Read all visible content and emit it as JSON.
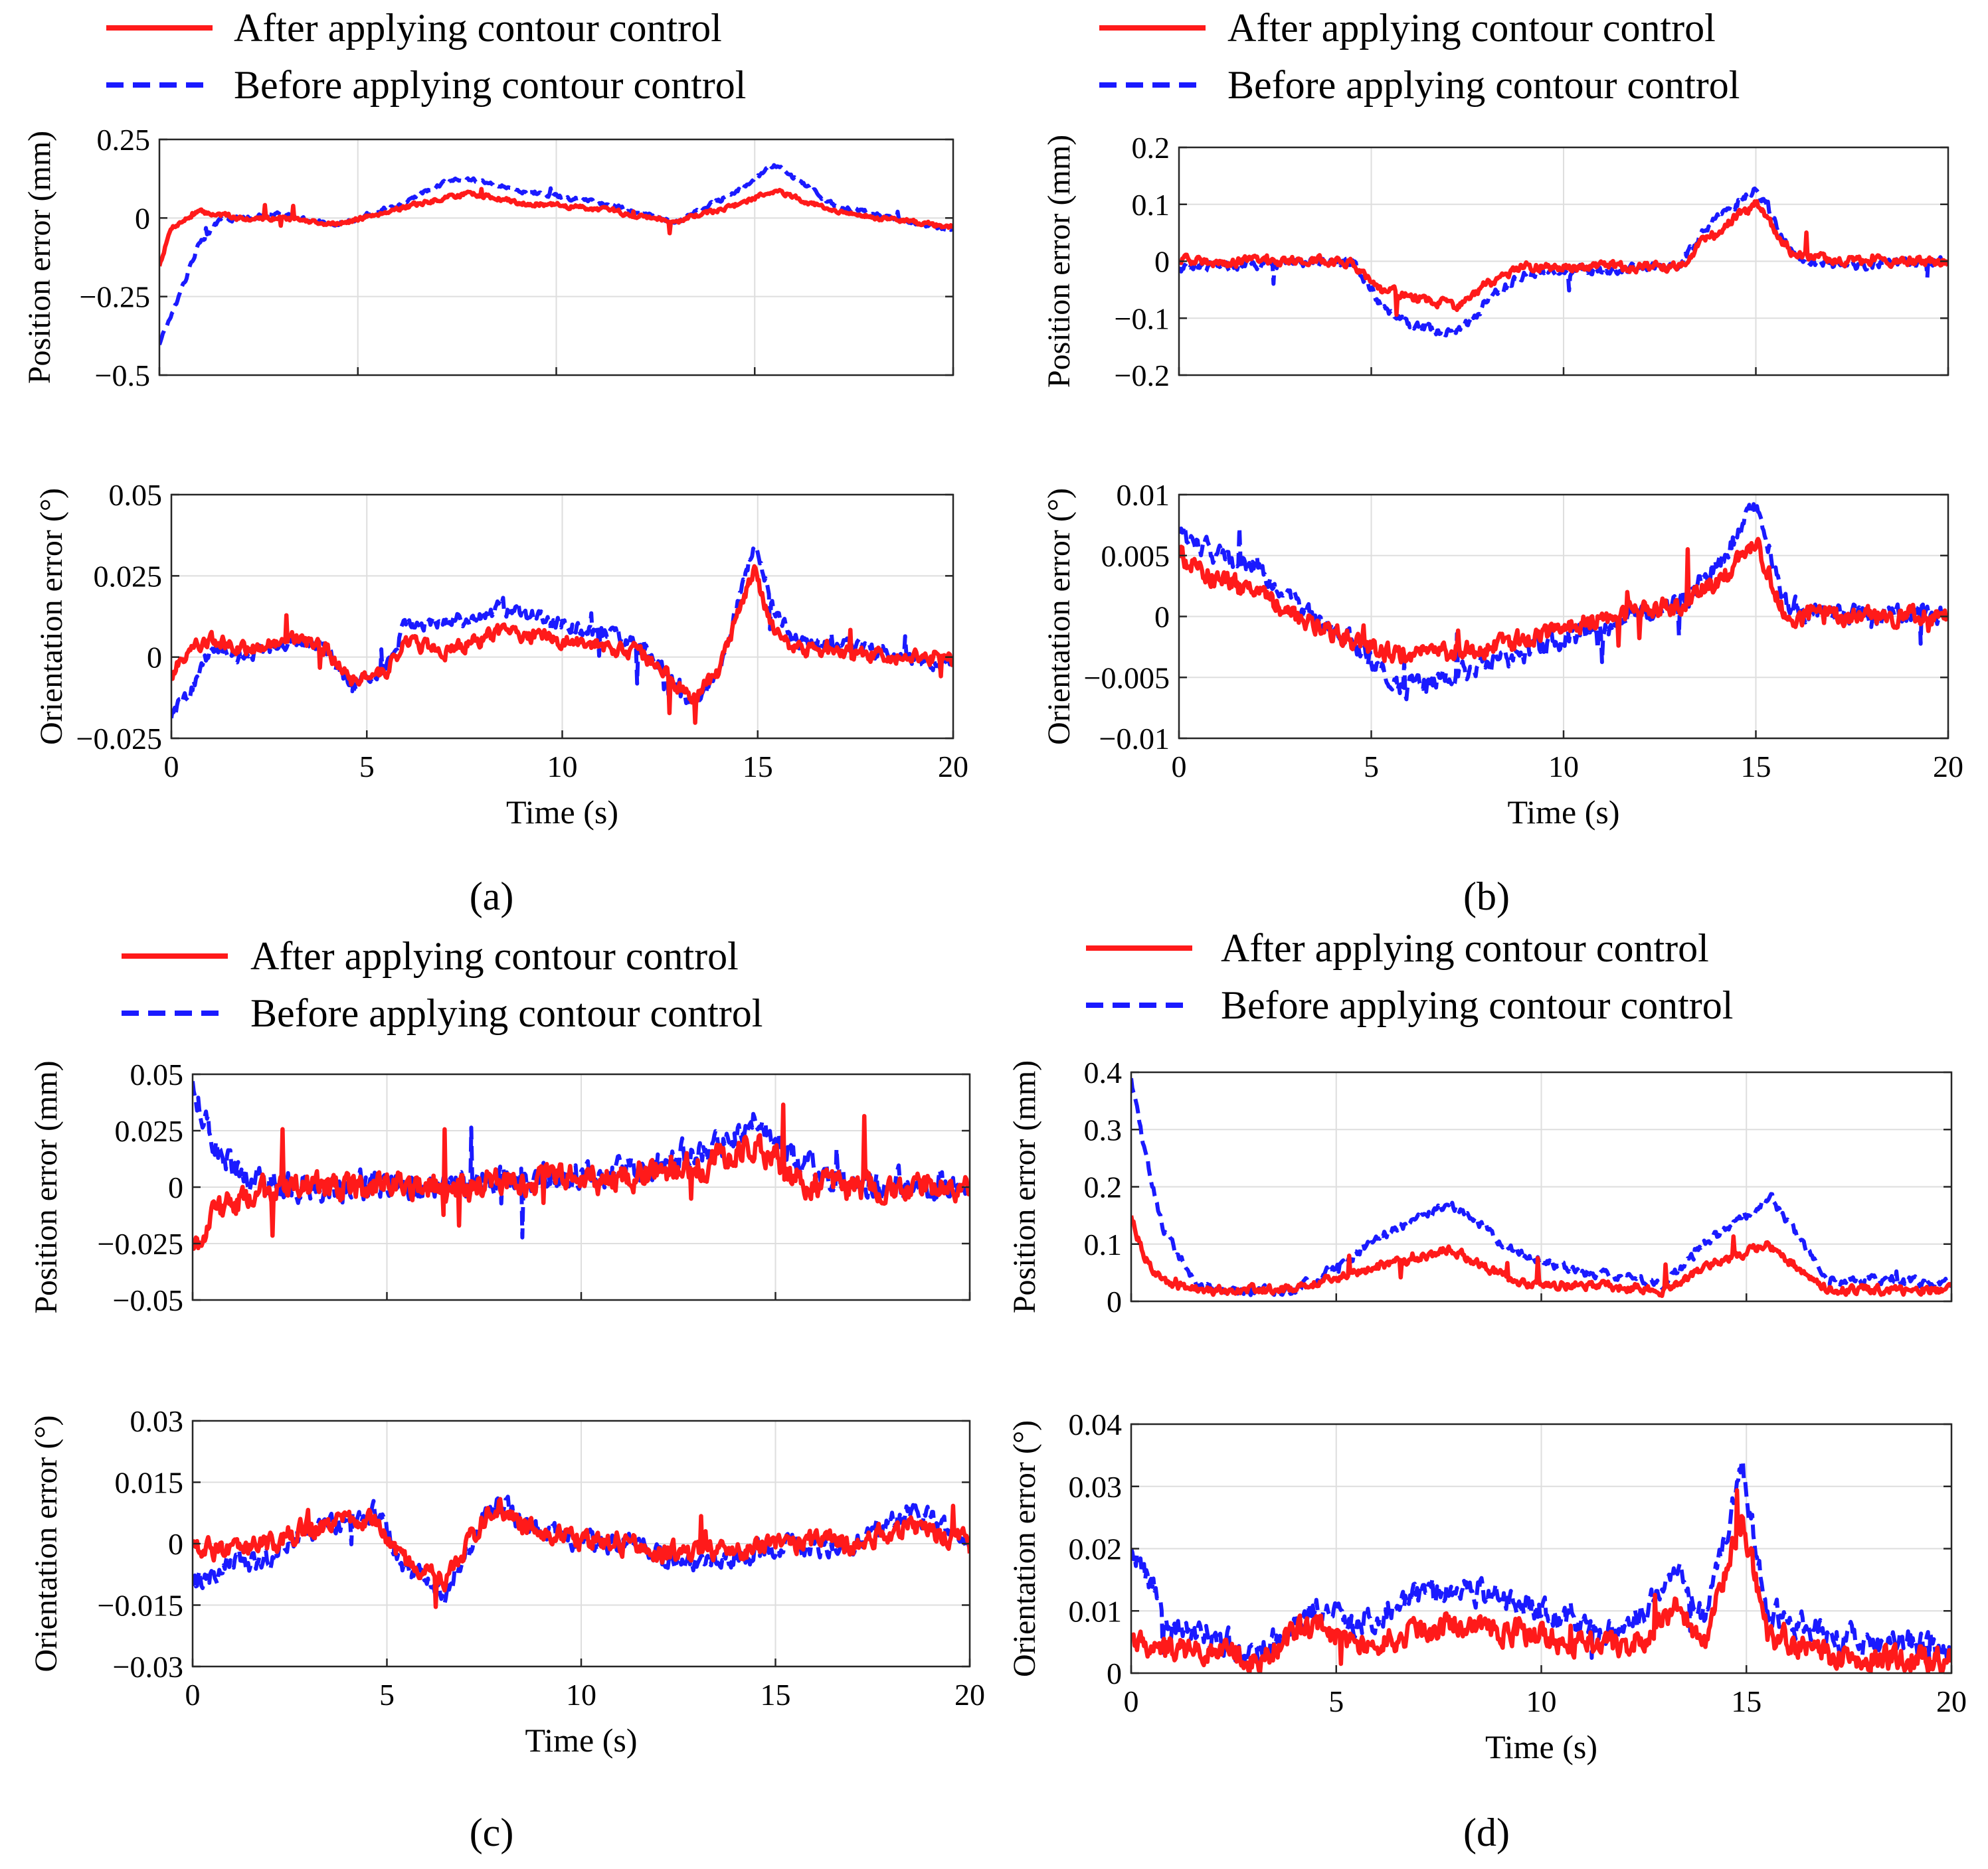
{
  "figure": {
    "series_colors": {
      "after": "#ff1a1a",
      "before": "#1a1aff"
    },
    "legend": [
      {
        "key": "after",
        "label": "After applying contour control",
        "style": "solid"
      },
      {
        "key": "before",
        "label": "Before applying contour control",
        "style": "dashed"
      }
    ]
  },
  "chart_data": [
    {
      "type": "line",
      "panel": "a",
      "caption": "(a)",
      "subplot": "position",
      "ylabel": "Position error (mm)",
      "xlabel": "",
      "xlim": [
        0,
        20
      ],
      "ylim": [
        -0.5,
        0.25
      ],
      "yticks": [
        -0.5,
        -0.25,
        0,
        0.25
      ],
      "ytick_labels": [
        "−0.5",
        "−0.25",
        "0",
        "0.25"
      ],
      "xticks": [
        0,
        5,
        10,
        15,
        20
      ],
      "xtick_labels": [],
      "grid": true,
      "noise": 0.008,
      "series": [
        {
          "name": "After applying contour control",
          "x": [
            0,
            0.3,
            1,
            2,
            3,
            4.5,
            6,
            7.8,
            9,
            11,
            13,
            14.5,
            15.5,
            17,
            20
          ],
          "values": [
            -0.15,
            -0.03,
            0.02,
            0,
            0,
            -0.02,
            0.03,
            0.08,
            0.05,
            0.03,
            -0.01,
            0.04,
            0.09,
            0.02,
            -0.03
          ]
        },
        {
          "name": "Before applying contour control",
          "x": [
            0,
            0.5,
            1,
            1.5,
            2,
            3,
            4.5,
            6,
            7.5,
            9,
            11,
            13,
            14.5,
            15.5,
            17,
            20
          ],
          "values": [
            -0.4,
            -0.25,
            -0.08,
            -0.01,
            0,
            0.01,
            -0.02,
            0.04,
            0.13,
            0.09,
            0.05,
            -0.01,
            0.08,
            0.17,
            0.04,
            -0.04
          ]
        }
      ]
    },
    {
      "type": "line",
      "panel": "a",
      "caption": "(a)",
      "subplot": "orientation",
      "ylabel": "Orientation error (°)",
      "xlabel": "Time (s)",
      "xlim": [
        0,
        20
      ],
      "ylim": [
        -0.025,
        0.05
      ],
      "yticks": [
        -0.025,
        0,
        0.025,
        0.05
      ],
      "ytick_labels": [
        "−0.025",
        "0",
        "0.025",
        "0.05"
      ],
      "xticks": [
        0,
        5,
        10,
        15,
        20
      ],
      "xtick_labels": [
        "0",
        "5",
        "10",
        "15",
        "20"
      ],
      "grid": true,
      "noise": 0.0025,
      "series": [
        {
          "name": "After applying contour control",
          "x": [
            0,
            0.5,
            1,
            2,
            3,
            4,
            4.6,
            5.5,
            6,
            7,
            8.5,
            10,
            12,
            13.3,
            14,
            14.9,
            15.4,
            16,
            18,
            20
          ],
          "values": [
            -0.005,
            0.003,
            0.005,
            0.002,
            0.006,
            0.002,
            -0.008,
            -0.004,
            0.005,
            0.002,
            0.008,
            0.005,
            0.002,
            -0.013,
            -0.005,
            0.027,
            0.008,
            0.002,
            0.001,
            0.0
          ]
        },
        {
          "name": "Before applying contour control",
          "x": [
            0,
            0.5,
            1,
            2,
            3,
            4,
            4.6,
            5.5,
            6,
            7,
            8.5,
            10,
            12,
            13.3,
            14,
            14.9,
            15.4,
            16,
            18,
            20
          ],
          "values": [
            -0.018,
            -0.01,
            0.002,
            0.0,
            0.005,
            0.002,
            -0.01,
            -0.003,
            0.01,
            0.01,
            0.015,
            0.01,
            0.005,
            -0.015,
            -0.005,
            0.035,
            0.015,
            0.005,
            0.002,
            -0.002
          ]
        }
      ]
    },
    {
      "type": "line",
      "panel": "b",
      "caption": "(b)",
      "subplot": "position",
      "ylabel": "Position error (mm)",
      "xlabel": "",
      "xlim": [
        0,
        20
      ],
      "ylim": [
        -0.2,
        0.2
      ],
      "yticks": [
        -0.2,
        -0.1,
        0,
        0.1,
        0.2
      ],
      "ytick_labels": [
        "−0.2",
        "−0.1",
        "0",
        "0.1",
        "0.2"
      ],
      "xticks": [
        0,
        5,
        10,
        15,
        20
      ],
      "xtick_labels": [],
      "grid": true,
      "noise": 0.009,
      "series": [
        {
          "name": "After applying contour control",
          "x": [
            0,
            4.5,
            5.2,
            6,
            7.2,
            8,
            9,
            13,
            13.7,
            15,
            16,
            17,
            20
          ],
          "values": [
            0,
            0,
            -0.05,
            -0.06,
            -0.08,
            -0.04,
            -0.01,
            -0.01,
            0.04,
            0.1,
            0.01,
            0,
            0
          ]
        },
        {
          "name": "Before applying contour control",
          "x": [
            0,
            4.5,
            5.3,
            6,
            7.2,
            8,
            9,
            13,
            13.7,
            15,
            16,
            17,
            20
          ],
          "values": [
            -0.01,
            0,
            -0.08,
            -0.11,
            -0.13,
            -0.07,
            -0.02,
            -0.01,
            0.06,
            0.13,
            0.01,
            -0.01,
            0
          ]
        }
      ]
    },
    {
      "type": "line",
      "panel": "b",
      "caption": "(b)",
      "subplot": "orientation",
      "ylabel": "Orientation error (°)",
      "xlabel": "Time (s)",
      "xlim": [
        0,
        20
      ],
      "ylim": [
        -0.01,
        0.01
      ],
      "yticks": [
        -0.01,
        -0.005,
        0,
        0.005,
        0.01
      ],
      "ytick_labels": [
        "−0.01",
        "−0.005",
        "0",
        "0.005",
        "0.01"
      ],
      "xticks": [
        0,
        5,
        10,
        15,
        20
      ],
      "xtick_labels": [
        "0",
        "5",
        "10",
        "15",
        "20"
      ],
      "grid": true,
      "noise": 0.0009,
      "series": [
        {
          "name": "After applying contour control",
          "x": [
            0,
            1,
            2,
            3,
            4.5,
            5.5,
            7,
            9,
            11,
            13,
            14,
            15,
            15.8,
            17,
            20
          ],
          "values": [
            0.005,
            0.003,
            0.002,
            0.0,
            -0.002,
            -0.003,
            -0.003,
            -0.002,
            0.0,
            0.001,
            0.003,
            0.006,
            0.0,
            0.0,
            0.0
          ]
        },
        {
          "name": "Before applying contour control",
          "x": [
            0,
            1,
            2,
            3,
            4.5,
            5.7,
            7,
            9,
            11,
            13,
            14,
            15,
            15.8,
            17,
            20
          ],
          "values": [
            0.007,
            0.005,
            0.004,
            0.001,
            -0.002,
            -0.006,
            -0.005,
            -0.003,
            -0.001,
            0.001,
            0.004,
            0.009,
            0.001,
            0.0,
            0.0
          ]
        }
      ]
    },
    {
      "type": "line",
      "panel": "c",
      "caption": "(c)",
      "subplot": "position",
      "ylabel": "Position error (mm)",
      "xlabel": "",
      "xlim": [
        0,
        20
      ],
      "ylim": [
        -0.05,
        0.05
      ],
      "yticks": [
        -0.05,
        -0.025,
        0,
        0.025,
        0.05
      ],
      "ytick_labels": [
        "−0.05",
        "−0.025",
        "0",
        "0.025",
        "0.05"
      ],
      "xticks": [
        0,
        5,
        10,
        15,
        20
      ],
      "xtick_labels": [],
      "grid": true,
      "noise": 0.007,
      "series": [
        {
          "name": "After applying contour control",
          "x": [
            0,
            0.5,
            1,
            2,
            5,
            8,
            11,
            13.5,
            14.5,
            15.5,
            17,
            20
          ],
          "values": [
            -0.025,
            -0.015,
            -0.008,
            -0.002,
            0,
            0.002,
            0.004,
            0.012,
            0.02,
            0.004,
            0.0,
            0.0
          ]
        },
        {
          "name": "Before applying contour control",
          "x": [
            0,
            0.3,
            0.8,
            1.5,
            2,
            5,
            8,
            11,
            13.5,
            14.5,
            15.5,
            17,
            20
          ],
          "values": [
            0.048,
            0.03,
            0.012,
            0.004,
            0.0,
            0.0,
            0.003,
            0.006,
            0.018,
            0.03,
            0.012,
            0.002,
            0.0
          ]
        }
      ]
    },
    {
      "type": "line",
      "panel": "c",
      "caption": "(c)",
      "subplot": "orientation",
      "ylabel": "Orientation error (°)",
      "xlabel": "Time (s)",
      "xlim": [
        0,
        20
      ],
      "ylim": [
        -0.03,
        0.03
      ],
      "yticks": [
        -0.03,
        -0.015,
        0,
        0.015,
        0.03
      ],
      "ytick_labels": [
        "−0.03",
        "−0.015",
        "0",
        "0.015",
        "0.03"
      ],
      "xticks": [
        0,
        5,
        10,
        15,
        20
      ],
      "xtick_labels": [
        "0",
        "5",
        "10",
        "15",
        "20"
      ],
      "grid": true,
      "noise": 0.0028,
      "series": [
        {
          "name": "After applying contour control",
          "x": [
            0,
            1,
            2,
            3,
            4.7,
            5.5,
            6.5,
            7.8,
            9,
            11,
            13,
            15,
            17,
            18.5,
            20
          ],
          "values": [
            0.0,
            -0.002,
            0.0,
            0.004,
            0.006,
            -0.005,
            -0.008,
            0.01,
            0.002,
            0.0,
            -0.003,
            0.0,
            0.0,
            0.004,
            0.0
          ]
        },
        {
          "name": "Before applying contour control",
          "x": [
            0,
            1,
            2,
            3,
            4.7,
            5.5,
            6.5,
            7.8,
            9,
            11,
            13,
            15,
            17,
            18.5,
            20
          ],
          "values": [
            -0.01,
            -0.005,
            -0.004,
            0.003,
            0.008,
            -0.006,
            -0.012,
            0.01,
            0.002,
            0.0,
            -0.005,
            -0.001,
            0.0,
            0.008,
            0.0
          ]
        }
      ]
    },
    {
      "type": "line",
      "panel": "d",
      "caption": "(d)",
      "subplot": "position",
      "ylabel": "Position error (mm)",
      "xlabel": "",
      "xlim": [
        0,
        20
      ],
      "ylim": [
        0,
        0.4
      ],
      "yticks": [
        0,
        0.1,
        0.2,
        0.3,
        0.4
      ],
      "ytick_labels": [
        "0",
        "0.1",
        "0.2",
        "0.3",
        "0.4"
      ],
      "xticks": [
        0,
        5,
        10,
        15,
        20
      ],
      "xtick_labels": [],
      "grid": true,
      "noise": 0.009,
      "clip_min": 0,
      "series": [
        {
          "name": "After applying contour control",
          "x": [
            0,
            0.3,
            0.8,
            1.5,
            4,
            5,
            6,
            7.8,
            9.5,
            11,
            13,
            14,
            15.5,
            17,
            20
          ],
          "values": [
            0.15,
            0.08,
            0.03,
            0.02,
            0.02,
            0.04,
            0.06,
            0.09,
            0.03,
            0.03,
            0.02,
            0.06,
            0.1,
            0.02,
            0.02
          ]
        },
        {
          "name": "Before applying contour control",
          "x": [
            0,
            0.3,
            0.8,
            1.5,
            2,
            4,
            5,
            6,
            7.8,
            9.5,
            11,
            13,
            14,
            15.6,
            17,
            20
          ],
          "values": [
            0.39,
            0.27,
            0.12,
            0.04,
            0.02,
            0.02,
            0.06,
            0.11,
            0.17,
            0.08,
            0.05,
            0.03,
            0.1,
            0.18,
            0.04,
            0.03
          ]
        }
      ]
    },
    {
      "type": "line",
      "panel": "d",
      "caption": "(d)",
      "subplot": "orientation",
      "ylabel": "Orientation error (°)",
      "xlabel": "Time (s)",
      "xlim": [
        0,
        20
      ],
      "ylim": [
        0,
        0.04
      ],
      "yticks": [
        0,
        0.01,
        0.02,
        0.03,
        0.04
      ],
      "ytick_labels": [
        "0",
        "0.01",
        "0.02",
        "0.03",
        "0.04"
      ],
      "xticks": [
        0,
        5,
        10,
        15,
        20
      ],
      "xtick_labels": [
        "0",
        "5",
        "10",
        "15",
        "20"
      ],
      "grid": true,
      "noise": 0.0024,
      "clip_min": 0,
      "series": [
        {
          "name": "After applying contour control",
          "x": [
            0,
            1,
            2,
            3,
            4.5,
            5.5,
            6.5,
            8,
            10,
            12,
            13.3,
            14,
            14.9,
            15.5,
            17,
            20
          ],
          "values": [
            0.006,
            0.004,
            0.004,
            0.002,
            0.008,
            0.004,
            0.006,
            0.008,
            0.006,
            0.004,
            0.01,
            0.005,
            0.025,
            0.006,
            0.003,
            0.002
          ]
        },
        {
          "name": "Before applying contour control",
          "x": [
            0,
            1,
            2,
            3,
            4.5,
            5.5,
            6.5,
            8,
            10,
            12,
            13.3,
            14,
            14.9,
            15.5,
            17,
            20
          ],
          "values": [
            0.02,
            0.008,
            0.006,
            0.003,
            0.01,
            0.008,
            0.011,
            0.014,
            0.01,
            0.006,
            0.016,
            0.008,
            0.033,
            0.01,
            0.006,
            0.004
          ]
        }
      ]
    }
  ]
}
